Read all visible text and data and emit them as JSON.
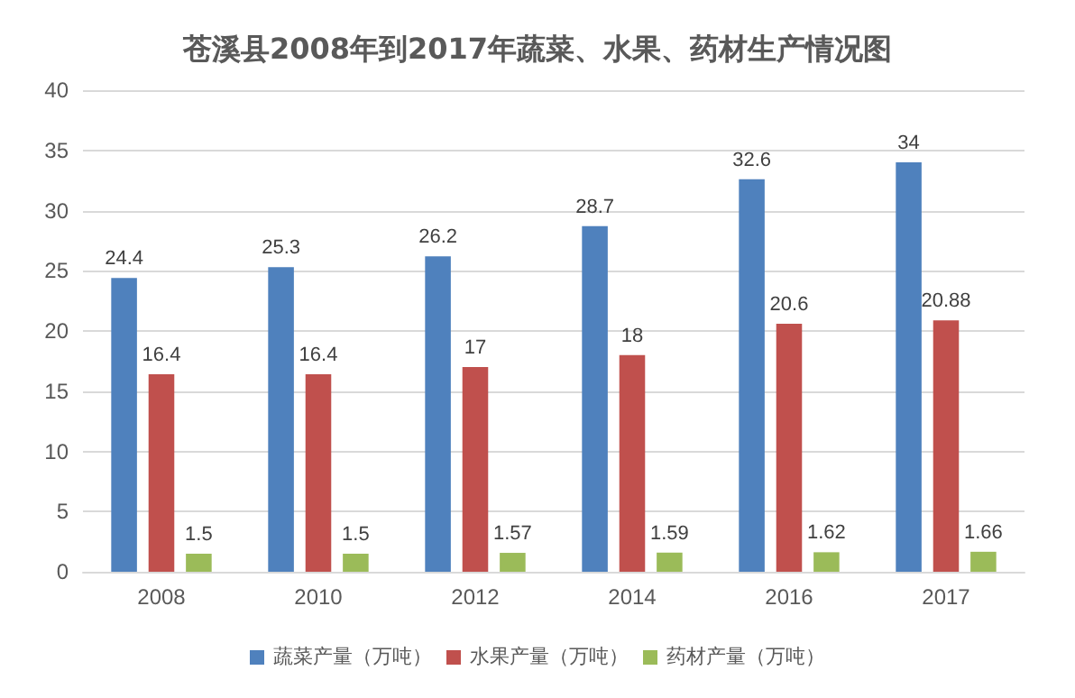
{
  "chart_data": {
    "type": "bar",
    "title": "苍溪县2008年到2017年蔬菜、水果、药材生产情况图",
    "categories": [
      "2008",
      "2010",
      "2012",
      "2014",
      "2016",
      "2017"
    ],
    "series": [
      {
        "name": "蔬菜产量（万吨）",
        "color": "#4f81bd",
        "values": [
          24.4,
          25.3,
          26.2,
          28.7,
          32.6,
          34
        ]
      },
      {
        "name": "水果产量（万吨）",
        "color": "#c0504d",
        "values": [
          16.4,
          16.4,
          17,
          18,
          20.6,
          20.88
        ]
      },
      {
        "name": "药材产量（万吨）",
        "color": "#9bbb59",
        "values": [
          1.5,
          1.5,
          1.57,
          1.59,
          1.62,
          1.66
        ]
      }
    ],
    "ylim": [
      0,
      40
    ],
    "yticks": [
      0,
      5,
      10,
      15,
      20,
      25,
      30,
      35,
      40
    ],
    "grid": "y",
    "legend": "bottom",
    "data_labels": true
  }
}
